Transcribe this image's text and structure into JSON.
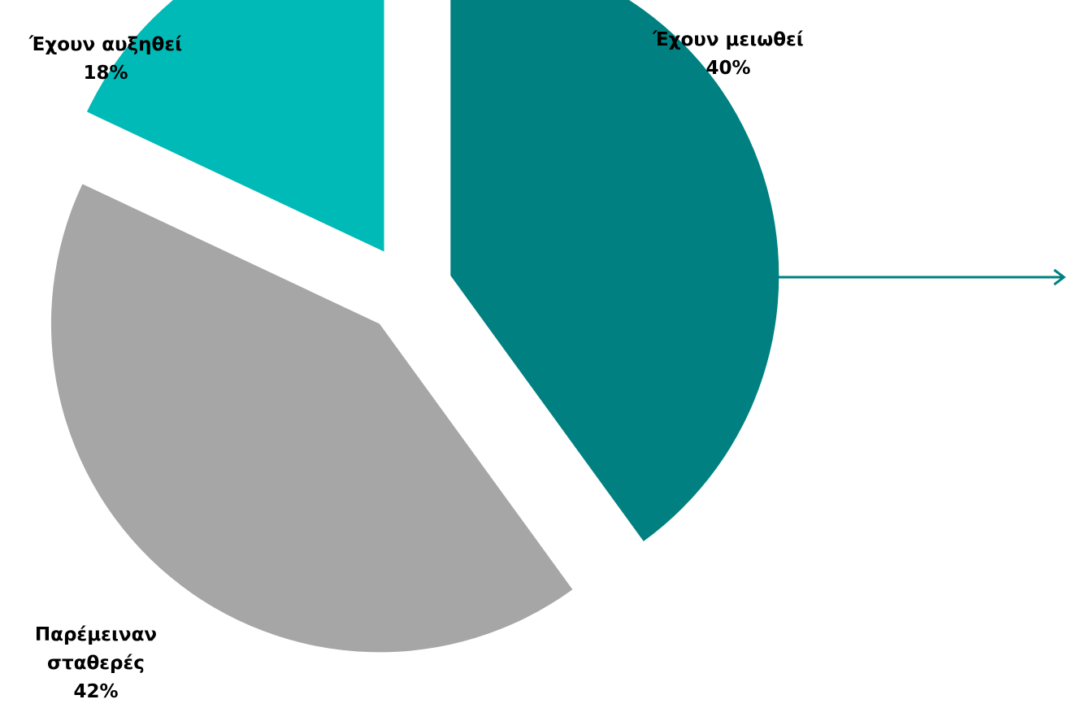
{
  "chart_data": {
    "type": "pie",
    "slices": [
      {
        "name": "Έχουν μειωθεί",
        "value": 40,
        "value_label": "40%",
        "label_lines": [
          "Έχουν μειωθεί"
        ],
        "color": "#008080"
      },
      {
        "name": "Παρέμειναν σταθερές",
        "value": 42,
        "value_label": "42%",
        "label_lines": [
          "Παρέμειναν",
          "σταθερές"
        ],
        "color": "#A6A6A6"
      },
      {
        "name": "Έχουν αυξηθεί",
        "value": 18,
        "value_label": "18%",
        "label_lines": [
          "Έχουν αυξηθεί"
        ],
        "color": "#00BAB8"
      }
    ],
    "start_angle": "12 o'clock",
    "direction": "clockwise",
    "exploded": true,
    "legend": "none",
    "arrow_color": "#008080"
  }
}
